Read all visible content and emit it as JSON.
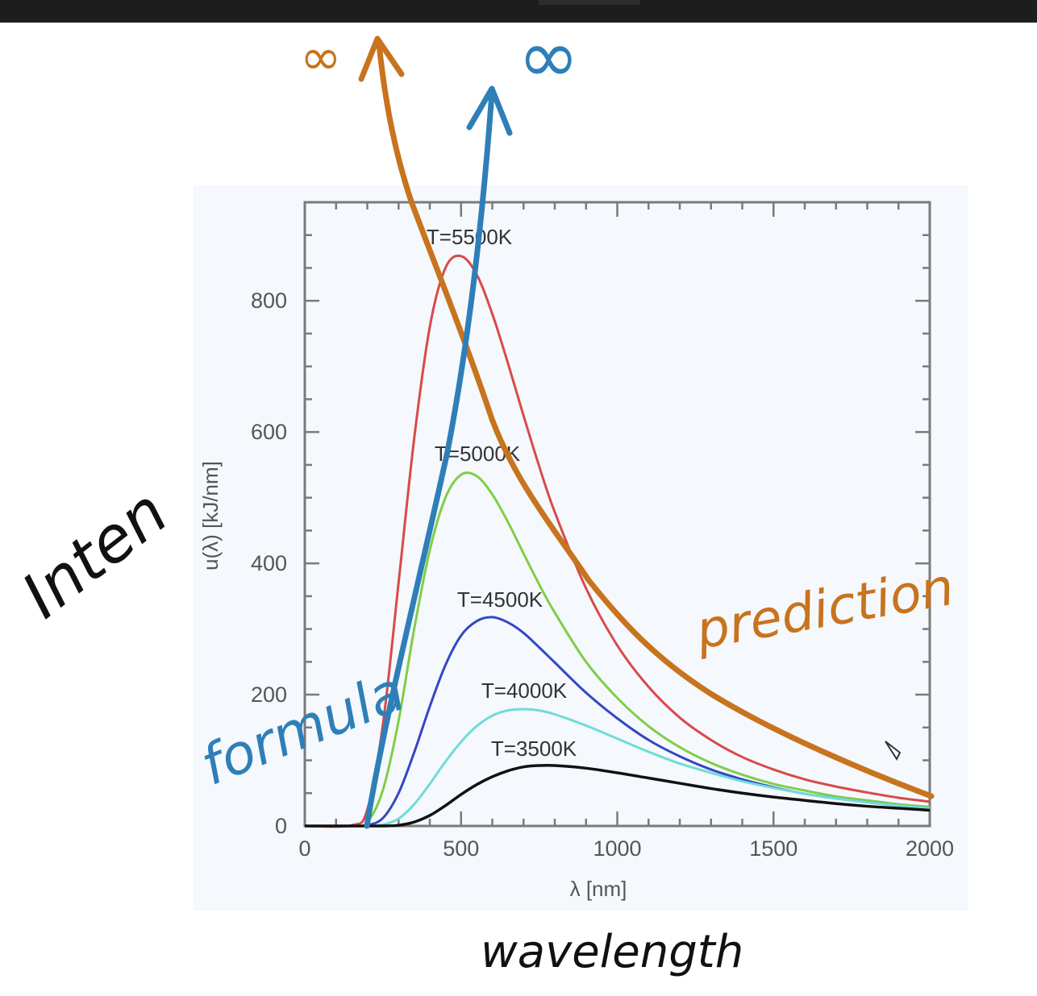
{
  "chart_data": {
    "type": "line",
    "xlabel": "λ [nm]",
    "ylabel": "u(λ)  [kJ/nm]",
    "xlim": [
      0,
      2000
    ],
    "ylim": [
      0,
      950
    ],
    "xticks": [
      "0",
      "500",
      "1000",
      "1500",
      "2000"
    ],
    "yticks": [
      "0",
      "200",
      "400",
      "600",
      "800"
    ],
    "xtick_values": [
      0,
      500,
      1000,
      1500,
      2000
    ],
    "ytick_values": [
      0,
      200,
      400,
      600,
      800
    ],
    "grid": false,
    "x": [
      0,
      150,
      200,
      250,
      300,
      350,
      400,
      450,
      500,
      550,
      600,
      650,
      700,
      750,
      800,
      900,
      1000,
      1100,
      1200,
      1300,
      1400,
      1500,
      1600,
      1700,
      1800,
      1900,
      2000
    ],
    "series": [
      {
        "name": "T=5500K",
        "color": "#d84a4a",
        "values": [
          0,
          1,
          25,
          155,
          370,
          590,
          760,
          850,
          868,
          840,
          780,
          705,
          625,
          548,
          478,
          362,
          275,
          212,
          165,
          131,
          105,
          86,
          71,
          60,
          51,
          43,
          37
        ]
      },
      {
        "name": "T=5000K",
        "color": "#7fce47",
        "values": [
          0,
          0,
          6,
          55,
          160,
          300,
          420,
          500,
          535,
          533,
          505,
          463,
          415,
          368,
          325,
          250,
          195,
          152,
          120,
          96,
          78,
          64,
          54,
          45,
          39,
          33,
          29
        ]
      },
      {
        "name": "T=4500K",
        "color": "#3546c4",
        "values": [
          0,
          0,
          1,
          12,
          50,
          112,
          182,
          245,
          290,
          312,
          318,
          310,
          294,
          272,
          249,
          203,
          164,
          131,
          106,
          86,
          71,
          59,
          49,
          42,
          36,
          31,
          27
        ]
      },
      {
        "name": "T=4000K",
        "color": "#6fdcd8",
        "values": [
          0,
          0,
          0,
          2,
          11,
          33,
          64,
          98,
          128,
          152,
          168,
          176,
          178,
          176,
          170,
          153,
          133,
          113,
          95,
          81,
          68,
          58,
          49,
          42,
          36,
          31,
          27
        ]
      },
      {
        "name": "T=3500K",
        "color": "#111111",
        "values": [
          0,
          0,
          0,
          0,
          1,
          6,
          16,
          31,
          48,
          63,
          75,
          84,
          90,
          92,
          92,
          88,
          81,
          73,
          65,
          57,
          50,
          44,
          39,
          34,
          30,
          27,
          24
        ]
      }
    ],
    "curve_labels": [
      {
        "text": "T=5500K",
        "series": 0
      },
      {
        "text": "T=5000K",
        "series": 1
      },
      {
        "text": "T=4500K",
        "series": 2
      },
      {
        "text": "T=4000K",
        "series": 3
      },
      {
        "text": "T=3500K",
        "series": 4
      }
    ]
  },
  "annotations": {
    "intensity": "Inten",
    "formula": "formula",
    "prediction": "prediction",
    "wavelength": "wavelength",
    "infinity_orange": "∞",
    "infinity_blue": "∞",
    "colors": {
      "orange": "#c8731e",
      "blue": "#2e7fb8",
      "ink": "#111111"
    }
  }
}
